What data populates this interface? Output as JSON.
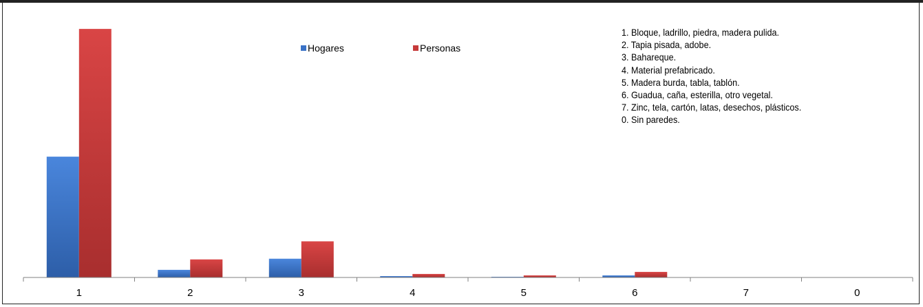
{
  "chart_data": {
    "type": "bar",
    "categories": [
      "1",
      "2",
      "3",
      "4",
      "5",
      "6",
      "7",
      "0"
    ],
    "series": [
      {
        "name": "Hogares",
        "color": "#3a72c6",
        "values": [
          174,
          11,
          27,
          2,
          1,
          3,
          0,
          0
        ]
      },
      {
        "name": "Personas",
        "color": "#c63a3a",
        "values": [
          358,
          26,
          52,
          5,
          3,
          8,
          0,
          0
        ]
      }
    ],
    "ylim": [
      0,
      370
    ],
    "grid": false,
    "legend_position": "top-center",
    "notes": [
      "1. Bloque, ladrillo, piedra, madera pulida.",
      "2. Tapia pisada, adobe.",
      "3. Bahareque.",
      "4. Material prefabricado.",
      "5. Madera burda, tabla, tablón.",
      "6. Guadua, caña, esterilla, otro vegetal.",
      "7. Zinc, tela, cartón, latas, desechos, plásticos.",
      "0. Sin paredes."
    ]
  }
}
